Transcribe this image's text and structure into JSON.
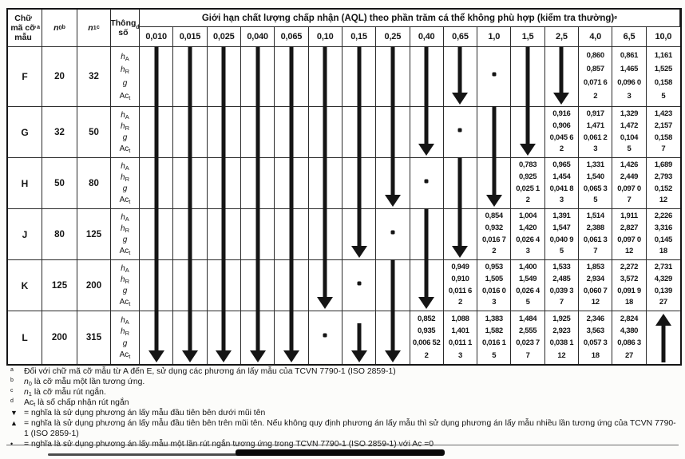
{
  "colors": {
    "ink": "#151515",
    "paper": "#ffffff"
  },
  "table": {
    "corner_headers": {
      "code_letter": [
        {
          "t": "Chữ mã cỡ mẫu "
        },
        {
          "t": "a",
          "sup": 1
        }
      ],
      "n0": [
        {
          "t": "n",
          "i": 1
        },
        {
          "t": "0",
          "sub": 1
        },
        {
          "t": "b",
          "sup": 1
        }
      ],
      "n1": [
        {
          "t": "n",
          "i": 1
        },
        {
          "t": "1",
          "sub": 1
        },
        {
          "t": "c",
          "sup": 1
        }
      ],
      "param": [
        {
          "t": "Thông số "
        },
        {
          "t": "d",
          "sup": 1
        }
      ]
    },
    "aql_title": [
      {
        "t": "Giới hạn chất lượng chấp nhận (AQL) theo phần trăm cá thể không phù hợp (kiểm tra thường) "
      },
      {
        "t": "e",
        "sup": 1
      }
    ],
    "aql_columns": [
      "0,010",
      "0,015",
      "0,025",
      "0,040",
      "0,065",
      "0,10",
      "0,15",
      "0,25",
      "0,40",
      "0,65",
      "1,0",
      "1,5",
      "2,5",
      "4,0",
      "6,5",
      "10,0"
    ],
    "param_labels": [
      [
        {
          "t": "h",
          "i": 1
        },
        {
          "t": "A",
          "sub": 1
        }
      ],
      [
        {
          "t": "h",
          "i": 1
        },
        {
          "t": "R",
          "sub": 1
        }
      ],
      [
        {
          "t": "g",
          "i": 1
        }
      ],
      [
        {
          "t": "Ac"
        },
        {
          "t": "t",
          "sub": 1
        }
      ]
    ],
    "cell_codes": {
      "s": "arrow-shaft-passthrough",
      "h": "down-arrow-head",
      "hs": "short-down-arrow",
      "d": "reduced-plan-dot",
      "u": "up-arrow"
    },
    "rows": [
      {
        "letter": "F",
        "n0": "20",
        "n1": "32",
        "cells": [
          "s",
          "s",
          "s",
          "s",
          "s",
          "s",
          "s",
          "s",
          "s",
          "h",
          "d",
          "s",
          "h",
          [
            "0,860",
            "0,857",
            "0,071 6",
            "2"
          ],
          [
            "0,861",
            "1,465",
            "0,096 0",
            "3"
          ],
          [
            "1,161",
            "1,525",
            "0,158",
            "5"
          ]
        ]
      },
      {
        "letter": "G",
        "n0": "32",
        "n1": "50",
        "cells": [
          "s",
          "s",
          "s",
          "s",
          "s",
          "s",
          "s",
          "s",
          "h",
          "d",
          "s",
          "h",
          [
            "0,916",
            "0,906",
            "0,045 6",
            "2"
          ],
          [
            "0,917",
            "1,471",
            "0,061 2",
            "3"
          ],
          [
            "1,329",
            "1,472",
            "0,104",
            "5"
          ],
          [
            "1,423",
            "2,157",
            "0,158",
            "7"
          ]
        ]
      },
      {
        "letter": "H",
        "n0": "50",
        "n1": "80",
        "cells": [
          "s",
          "s",
          "s",
          "s",
          "s",
          "s",
          "s",
          "h",
          "d",
          "s",
          "h",
          [
            "0,783",
            "0,925",
            "0,025 1",
            "2"
          ],
          [
            "0,965",
            "1,454",
            "0,041 8",
            "3"
          ],
          [
            "1,331",
            "1,540",
            "0,065 3",
            "5"
          ],
          [
            "1,426",
            "2,449",
            "0,097 0",
            "7"
          ],
          [
            "1,689",
            "2,793",
            "0,152",
            "12"
          ]
        ]
      },
      {
        "letter": "J",
        "n0": "80",
        "n1": "125",
        "cells": [
          "s",
          "s",
          "s",
          "s",
          "s",
          "s",
          "h",
          "d",
          "s",
          "h",
          [
            "0,854",
            "0,932",
            "0,016 7",
            "2"
          ],
          [
            "1,004",
            "1,420",
            "0,026 4",
            "3"
          ],
          [
            "1,391",
            "1,547",
            "0,040 9",
            "5"
          ],
          [
            "1,514",
            "2,388",
            "0,061 3",
            "7"
          ],
          [
            "1,911",
            "2,827",
            "0,097 0",
            "12"
          ],
          [
            "2,226",
            "3,316",
            "0,145",
            "18"
          ]
        ]
      },
      {
        "letter": "K",
        "n0": "125",
        "n1": "200",
        "cells": [
          "s",
          "s",
          "s",
          "s",
          "s",
          "h",
          "d",
          "s",
          "h",
          [
            "0,949",
            "0,910",
            "0,011 6",
            "2"
          ],
          [
            "0,953",
            "1,505",
            "0,016 0",
            "3"
          ],
          [
            "1,400",
            "1,549",
            "0,026 4",
            "5"
          ],
          [
            "1,533",
            "2,485",
            "0,039 3",
            "7"
          ],
          [
            "1,853",
            "2,934",
            "0,060 7",
            "12"
          ],
          [
            "2,272",
            "3,572",
            "0,091 9",
            "18"
          ],
          [
            "2,731",
            "4,329",
            "0,139",
            "27"
          ]
        ]
      },
      {
        "letter": "L",
        "n0": "200",
        "n1": "315",
        "cells": [
          "h",
          "h",
          "h",
          "h",
          "h",
          "d",
          "hs",
          "h",
          [
            "0,852",
            "0,935",
            "0,006 52",
            "2"
          ],
          [
            "1,088",
            "1,401",
            "0,011 1",
            "3"
          ],
          [
            "1,383",
            "1,582",
            "0,016 1",
            "5"
          ],
          [
            "1,484",
            "2,555",
            "0,023 7",
            "7"
          ],
          [
            "1,925",
            "2,923",
            "0,038 1",
            "12"
          ],
          [
            "2,346",
            "3,563",
            "0,057 3",
            "18"
          ],
          [
            "2,824",
            "4,380",
            "0,086 3",
            "27"
          ],
          "u"
        ]
      }
    ]
  },
  "footnotes": [
    {
      "marker": [
        {
          "t": "a",
          "sup": 1
        }
      ],
      "text": [
        {
          "t": "Đối với chữ mã cỡ mẫu từ A đến E, sử dụng các phương án lấy mẫu của TCVN 7790-1 (ISO 2859-1)"
        }
      ]
    },
    {
      "marker": [
        {
          "t": "b",
          "sup": 1
        }
      ],
      "text": [
        {
          "t": "n",
          "i": 1
        },
        {
          "t": "0",
          "sub": 1
        },
        {
          "t": " là cỡ mẫu một lần tương ứng."
        }
      ]
    },
    {
      "marker": [
        {
          "t": "c",
          "sup": 1
        }
      ],
      "text": [
        {
          "t": "n",
          "i": 1
        },
        {
          "t": "1",
          "sub": 1
        },
        {
          "t": " là cỡ mẫu rút ngắn."
        }
      ]
    },
    {
      "marker": [
        {
          "t": "d",
          "sup": 1
        }
      ],
      "text": [
        {
          "t": "Ac"
        },
        {
          "t": "t",
          "sub": 1
        },
        {
          "t": " là số chấp nhận rút ngắn"
        }
      ]
    },
    {
      "marker": "▼",
      "text": [
        {
          "t": "= nghĩa là sử dụng phương án lấy mẫu đầu tiên bên dưới mũi tên"
        }
      ]
    },
    {
      "marker": "▲",
      "text": [
        {
          "t": "= nghĩa là sử dụng phương án lấy mẫu đầu tiên bên trên mũi tên. Nếu không quy định phương án lấy mẫu thì sử dụng phương án lấy mẫu nhiều lần tương ứng của TCVN 7790-1 (ISO 2859-1)"
        }
      ]
    },
    {
      "marker": "•",
      "text": [
        {
          "t": "= nghĩa là sử dụng phương án lấy mẫu một lần rút ngắn tương ứng trong TCVN 7790-1 (ISO 2859-1) với Ac =0"
        }
      ]
    }
  ]
}
